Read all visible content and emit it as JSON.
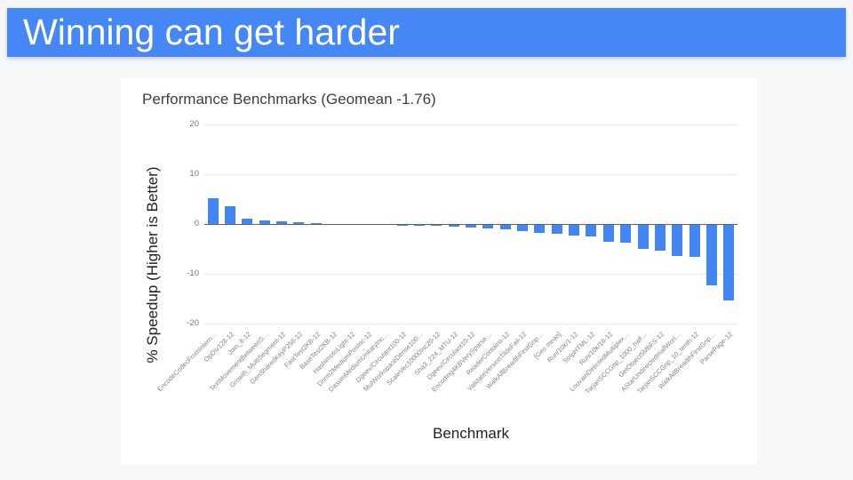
{
  "slide": {
    "title": "Winning can get harder"
  },
  "colors": {
    "header_blue": "#4587f5",
    "bar_blue": "#4285f4",
    "gridline": "#e6e6e6",
    "zero_line": "#616161",
    "tick_text": "#757575",
    "category_text": "#838383",
    "card_background": "#ffffff",
    "slide_background": "#f6f7f8"
  },
  "chart_data": {
    "type": "bar",
    "title": "Performance Benchmarks (Geomean -1.76)",
    "xlabel": "Benchmark",
    "ylabel": "% Speedup (Higher is Better)",
    "ylim": [
      -20,
      20
    ],
    "yticks": [
      20,
      10,
      0,
      -10,
      -20
    ],
    "grid": true,
    "legend": "none",
    "bar_color": "#4285f4",
    "categories": [
      "EncodeCodecFromIntern…",
      "OpDiv128-12",
      "Join_8-12",
      "TextMovementBetweenS…",
      "Growth_MultiSegment-12",
      "GenSharedKeyP256-12",
      "FastTest2KB-12",
      "BaseTest2KB-12",
      "HashimotoLight-12",
      "Dnrm2MediumPosInc-12",
      "DasumMediumUnitaryInc…",
      "Dgeev/Circulant100-12",
      "MulWorkspaceDense100…",
      "ScaleVec10000Inc20-12",
      "Sha3_224_MTU-12",
      "Dgeev/Circulant10-12",
      "Encoding4KBVerySparse…",
      "ReaderContains-12",
      "ValidateVersionTildeFail-12",
      "WalkAllBreadthFirstGnp…",
      "[Geo mean]",
      "Run/10k/1-12",
      "StripHTML-12",
      "Run/10k/16-12",
      "LouvainDirectedMultiplex…",
      "TarjanSCCGnp_1000_half…",
      "GetObject5MbFS-12",
      "AStarUndirectedmallWorl…",
      "TarjanSCCGnp_10_tenth-12",
      "WalkAllBreadthFirstGnp…",
      "ParsePage-12"
    ],
    "values": [
      5.2,
      3.5,
      1.1,
      0.8,
      0.55,
      0.3,
      0.12,
      0.08,
      0.05,
      0.02,
      0.0,
      -0.03,
      -0.06,
      -0.1,
      -0.3,
      -0.5,
      -0.7,
      -0.9,
      -1.2,
      -1.6,
      -1.76,
      -2.2,
      -2.4,
      -3.4,
      -3.5,
      -4.9,
      -5.2,
      -6.2,
      -6.4,
      -12.2,
      -15.2
    ]
  }
}
